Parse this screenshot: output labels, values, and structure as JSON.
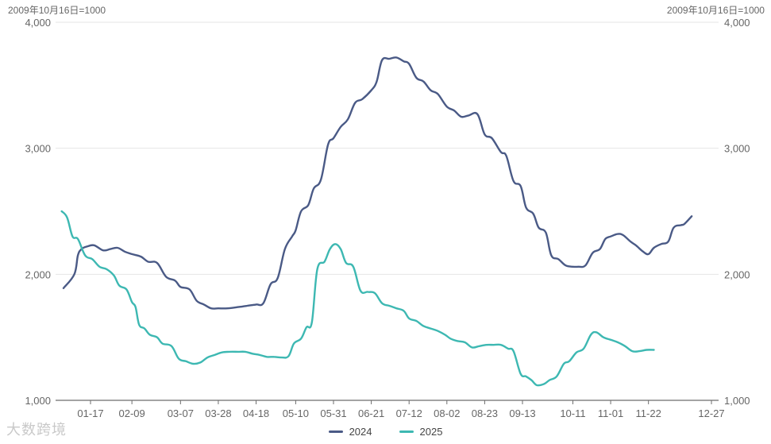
{
  "chart_data": {
    "type": "line",
    "unit_label_left": "2009年10月16日=1000",
    "unit_label_right": "2009年10月16日=1000",
    "x_tick_labels": [
      "01-17",
      "02-09",
      "03-07",
      "03-28",
      "04-18",
      "05-10",
      "05-31",
      "06-21",
      "07-12",
      "08-02",
      "08-23",
      "09-13",
      "10-11",
      "11-01",
      "11-22",
      "12-27"
    ],
    "y_tick_labels": [
      "1,000",
      "2,000",
      "3,000",
      "4,000"
    ],
    "ylim": [
      1000,
      4000
    ],
    "grid": true,
    "legend_position": "bottom",
    "series": [
      {
        "name": "2024",
        "color": "#4a5a86",
        "points": [
          [
            "01-02",
            1890
          ],
          [
            "01-08",
            2000
          ],
          [
            "01-10",
            2150
          ],
          [
            "01-12",
            2200
          ],
          [
            "01-15",
            2220
          ],
          [
            "01-19",
            2230
          ],
          [
            "01-24",
            2190
          ],
          [
            "01-28",
            2200
          ],
          [
            "02-01",
            2210
          ],
          [
            "02-05",
            2180
          ],
          [
            "02-09",
            2160
          ],
          [
            "02-14",
            2140
          ],
          [
            "02-18",
            2100
          ],
          [
            "02-23",
            2090
          ],
          [
            "02-28",
            1980
          ],
          [
            "03-04",
            1950
          ],
          [
            "03-07",
            1900
          ],
          [
            "03-12",
            1880
          ],
          [
            "03-16",
            1790
          ],
          [
            "03-20",
            1760
          ],
          [
            "03-24",
            1730
          ],
          [
            "03-28",
            1730
          ],
          [
            "04-02",
            1730
          ],
          [
            "04-08",
            1740
          ],
          [
            "04-13",
            1750
          ],
          [
            "04-18",
            1760
          ],
          [
            "04-22",
            1770
          ],
          [
            "04-26",
            1920
          ],
          [
            "04-30",
            1970
          ],
          [
            "05-04",
            2200
          ],
          [
            "05-08",
            2300
          ],
          [
            "05-10",
            2350
          ],
          [
            "05-13",
            2500
          ],
          [
            "05-17",
            2550
          ],
          [
            "05-20",
            2680
          ],
          [
            "05-24",
            2750
          ],
          [
            "05-28",
            3030
          ],
          [
            "05-31",
            3080
          ],
          [
            "06-04",
            3170
          ],
          [
            "06-08",
            3230
          ],
          [
            "06-12",
            3360
          ],
          [
            "06-16",
            3390
          ],
          [
            "06-21",
            3460
          ],
          [
            "06-24",
            3530
          ],
          [
            "06-27",
            3700
          ],
          [
            "07-01",
            3710
          ],
          [
            "07-05",
            3720
          ],
          [
            "07-09",
            3690
          ],
          [
            "07-12",
            3670
          ],
          [
            "07-16",
            3560
          ],
          [
            "07-20",
            3530
          ],
          [
            "07-24",
            3460
          ],
          [
            "07-28",
            3430
          ],
          [
            "08-02",
            3330
          ],
          [
            "08-06",
            3300
          ],
          [
            "08-10",
            3250
          ],
          [
            "08-14",
            3260
          ],
          [
            "08-19",
            3270
          ],
          [
            "08-23",
            3110
          ],
          [
            "08-27",
            3080
          ],
          [
            "09-01",
            2970
          ],
          [
            "09-04",
            2940
          ],
          [
            "09-08",
            2740
          ],
          [
            "09-12",
            2700
          ],
          [
            "09-15",
            2530
          ],
          [
            "09-19",
            2480
          ],
          [
            "09-22",
            2370
          ],
          [
            "09-26",
            2330
          ],
          [
            "09-29",
            2150
          ],
          [
            "10-03",
            2120
          ],
          [
            "10-07",
            2070
          ],
          [
            "10-11",
            2060
          ],
          [
            "10-14",
            2060
          ],
          [
            "10-18",
            2070
          ],
          [
            "10-22",
            2170
          ],
          [
            "10-26",
            2200
          ],
          [
            "10-29",
            2280
          ],
          [
            "11-01",
            2300
          ],
          [
            "11-05",
            2320
          ],
          [
            "11-08",
            2310
          ],
          [
            "11-12",
            2260
          ],
          [
            "11-15",
            2230
          ],
          [
            "11-19",
            2180
          ],
          [
            "11-22",
            2160
          ],
          [
            "11-25",
            2210
          ],
          [
            "11-29",
            2240
          ],
          [
            "12-03",
            2260
          ],
          [
            "12-06",
            2370
          ],
          [
            "12-10",
            2390
          ],
          [
            "12-12",
            2400
          ],
          [
            "12-16",
            2460
          ]
        ]
      },
      {
        "name": "2025",
        "color": "#3db8b2",
        "points": [
          [
            "01-01",
            2500
          ],
          [
            "01-04",
            2450
          ],
          [
            "01-07",
            2300
          ],
          [
            "01-10",
            2280
          ],
          [
            "01-14",
            2150
          ],
          [
            "01-18",
            2120
          ],
          [
            "01-22",
            2060
          ],
          [
            "01-26",
            2040
          ],
          [
            "01-30",
            1990
          ],
          [
            "02-02",
            1910
          ],
          [
            "02-06",
            1880
          ],
          [
            "02-09",
            1780
          ],
          [
            "02-11",
            1740
          ],
          [
            "02-13",
            1600
          ],
          [
            "02-16",
            1570
          ],
          [
            "02-19",
            1520
          ],
          [
            "02-23",
            1500
          ],
          [
            "02-26",
            1450
          ],
          [
            "03-02",
            1430
          ],
          [
            "03-06",
            1330
          ],
          [
            "03-10",
            1310
          ],
          [
            "03-14",
            1290
          ],
          [
            "03-18",
            1300
          ],
          [
            "03-22",
            1340
          ],
          [
            "03-26",
            1360
          ],
          [
            "03-30",
            1380
          ],
          [
            "04-03",
            1385
          ],
          [
            "04-08",
            1385
          ],
          [
            "04-12",
            1385
          ],
          [
            "04-16",
            1370
          ],
          [
            "04-20",
            1360
          ],
          [
            "04-24",
            1345
          ],
          [
            "04-28",
            1345
          ],
          [
            "05-02",
            1340
          ],
          [
            "05-06",
            1350
          ],
          [
            "05-09",
            1450
          ],
          [
            "05-13",
            1490
          ],
          [
            "05-16",
            1580
          ],
          [
            "05-19",
            1620
          ],
          [
            "05-22",
            2040
          ],
          [
            "05-26",
            2100
          ],
          [
            "05-29",
            2200
          ],
          [
            "06-01",
            2240
          ],
          [
            "06-04",
            2200
          ],
          [
            "06-07",
            2090
          ],
          [
            "06-11",
            2060
          ],
          [
            "06-15",
            1870
          ],
          [
            "06-19",
            1860
          ],
          [
            "06-23",
            1850
          ],
          [
            "06-27",
            1770
          ],
          [
            "07-01",
            1750
          ],
          [
            "07-05",
            1730
          ],
          [
            "07-09",
            1710
          ],
          [
            "07-12",
            1650
          ],
          [
            "07-16",
            1630
          ],
          [
            "07-20",
            1590
          ],
          [
            "07-24",
            1570
          ],
          [
            "07-28",
            1550
          ],
          [
            "08-01",
            1520
          ],
          [
            "08-04",
            1490
          ],
          [
            "08-08",
            1470
          ],
          [
            "08-12",
            1460
          ],
          [
            "08-16",
            1420
          ],
          [
            "08-20",
            1430
          ],
          [
            "08-24",
            1440
          ],
          [
            "08-28",
            1440
          ],
          [
            "09-01",
            1440
          ],
          [
            "09-05",
            1410
          ],
          [
            "09-08",
            1390
          ],
          [
            "09-12",
            1210
          ],
          [
            "09-15",
            1190
          ],
          [
            "09-18",
            1160
          ],
          [
            "09-21",
            1120
          ],
          [
            "09-25",
            1130
          ],
          [
            "09-28",
            1160
          ],
          [
            "10-02",
            1190
          ],
          [
            "10-06",
            1290
          ],
          [
            "10-09",
            1310
          ],
          [
            "10-13",
            1380
          ],
          [
            "10-17",
            1410
          ],
          [
            "10-21",
            1520
          ],
          [
            "10-24",
            1540
          ],
          [
            "10-28",
            1500
          ],
          [
            "11-01",
            1480
          ],
          [
            "11-05",
            1460
          ],
          [
            "11-09",
            1430
          ],
          [
            "11-13",
            1390
          ],
          [
            "11-17",
            1390
          ],
          [
            "11-21",
            1400
          ],
          [
            "11-25",
            1400
          ]
        ]
      }
    ]
  },
  "watermark": "大数跨境"
}
